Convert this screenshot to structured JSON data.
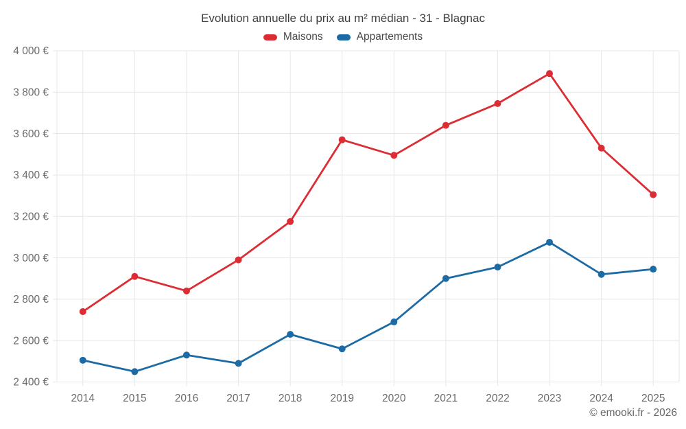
{
  "page": {
    "footer": "© emooki.fr - 2026"
  },
  "colors": {
    "maisons": "#db2d33",
    "appartements": "#1c6ba5",
    "grid": "#e7e7e7",
    "tick_text": "#6b6b6b",
    "title_text": "#3f3f3f"
  },
  "chart_data": {
    "type": "line",
    "title": "Evolution annuelle du prix au m² médian - 31 - Blagnac",
    "x": [
      2014,
      2015,
      2016,
      2017,
      2018,
      2019,
      2020,
      2021,
      2022,
      2023,
      2024,
      2025
    ],
    "series": [
      {
        "name": "Maisons",
        "color": "#db2d33",
        "values": [
          2740,
          2910,
          2840,
          2990,
          3175,
          3570,
          3495,
          3640,
          3745,
          3890,
          3530,
          3305
        ]
      },
      {
        "name": "Appartements",
        "color": "#1c6ba5",
        "values": [
          2505,
          2450,
          2530,
          2490,
          2630,
          2560,
          2690,
          2900,
          2955,
          3075,
          2920,
          2945
        ]
      }
    ],
    "xlabel": "",
    "ylabel": "",
    "ylim": [
      2400,
      4000
    ],
    "ytick_step": 200,
    "ytick_suffix": " €",
    "grid": true,
    "legend_position": "top"
  }
}
